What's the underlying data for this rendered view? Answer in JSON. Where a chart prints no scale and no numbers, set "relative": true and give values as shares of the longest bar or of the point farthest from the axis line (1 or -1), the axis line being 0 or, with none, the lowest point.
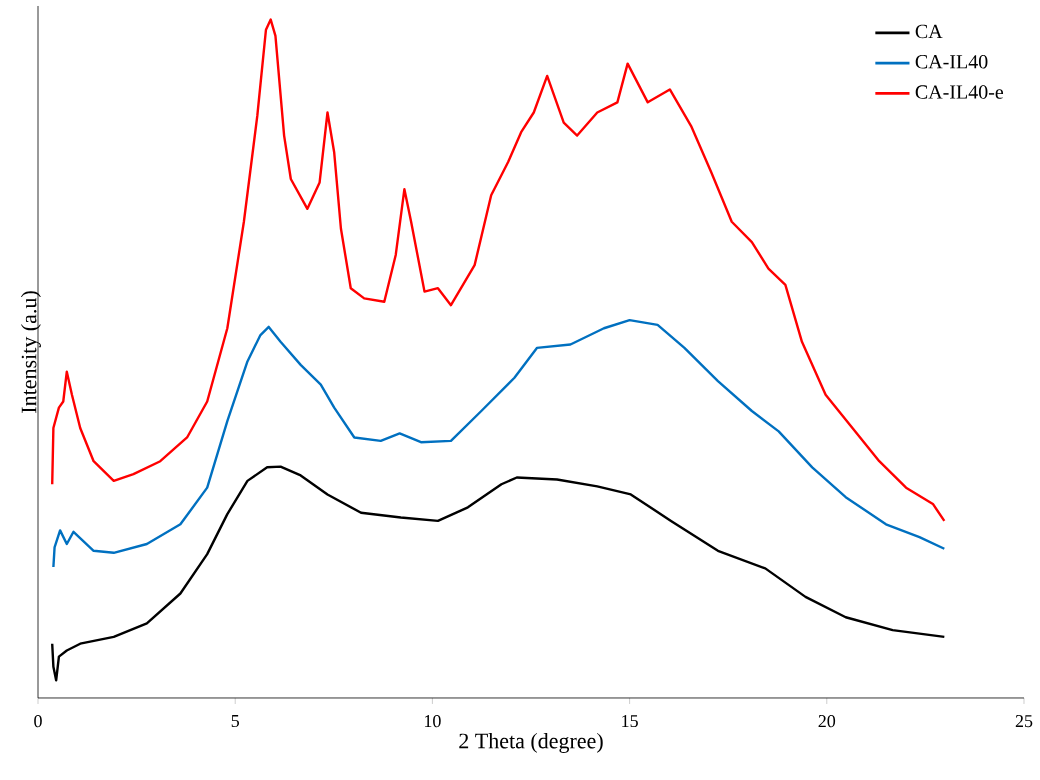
{
  "chart_data": {
    "type": "line",
    "xlabel": "2 Theta (degree)",
    "ylabel": "Intensity (a.u)",
    "relative": true,
    "xlim": [
      0,
      25
    ],
    "xticks": [
      0,
      5,
      10,
      15,
      20,
      25
    ],
    "tick_labels": "x",
    "legend": "top right",
    "marker": "none",
    "line_style": "solid",
    "series": [
      {
        "name": "CA",
        "color": "#000000",
        "x": [
          0.36,
          0.39,
          0.46,
          0.53,
          0.73,
          1.07,
          1.92,
          2.76,
          3.61,
          4.29,
          4.8,
          5.31,
          5.81,
          6.15,
          6.66,
          7.34,
          8.19,
          9.2,
          10.14,
          10.9,
          11.75,
          12.14,
          13.16,
          14.18,
          15.03,
          16.05,
          17.24,
          18.44,
          19.46,
          20.48,
          21.67,
          22.98
        ],
        "values": [
          0.08,
          0.046,
          0.026,
          0.061,
          0.07,
          0.08,
          0.09,
          0.11,
          0.154,
          0.212,
          0.271,
          0.32,
          0.34,
          0.341,
          0.328,
          0.3,
          0.273,
          0.266,
          0.261,
          0.281,
          0.315,
          0.325,
          0.322,
          0.312,
          0.3,
          0.261,
          0.217,
          0.191,
          0.149,
          0.119,
          0.1,
          0.09
        ]
      },
      {
        "name": "CA-IL40",
        "color": "#0070c0",
        "x": [
          0.39,
          0.42,
          0.56,
          0.73,
          0.9,
          1.41,
          1.92,
          2.76,
          3.61,
          4.29,
          4.8,
          5.31,
          5.64,
          5.85,
          6.15,
          6.66,
          7.17,
          7.51,
          8.02,
          8.69,
          9.17,
          9.71,
          10.47,
          11.24,
          12.08,
          12.65,
          13.5,
          14.35,
          15.0,
          15.71,
          16.39,
          17.24,
          18.1,
          18.78,
          19.63,
          20.48,
          21.5,
          22.35,
          22.98
        ],
        "values": [
          0.193,
          0.222,
          0.247,
          0.227,
          0.245,
          0.217,
          0.214,
          0.227,
          0.256,
          0.31,
          0.408,
          0.496,
          0.535,
          0.547,
          0.525,
          0.491,
          0.462,
          0.428,
          0.384,
          0.379,
          0.39,
          0.377,
          0.379,
          0.423,
          0.472,
          0.516,
          0.521,
          0.545,
          0.557,
          0.55,
          0.516,
          0.467,
          0.423,
          0.393,
          0.34,
          0.296,
          0.256,
          0.237,
          0.22
        ]
      },
      {
        "name": "CA-IL40-e",
        "color": "#ff0000",
        "x": [
          0.36,
          0.39,
          0.53,
          0.64,
          0.73,
          0.86,
          1.07,
          1.41,
          1.92,
          2.42,
          3.1,
          3.78,
          4.29,
          4.8,
          5.22,
          5.56,
          5.78,
          5.9,
          6.02,
          6.24,
          6.41,
          6.83,
          7.14,
          7.34,
          7.51,
          7.68,
          7.93,
          8.27,
          8.78,
          9.07,
          9.29,
          9.46,
          9.8,
          10.14,
          10.47,
          11.07,
          11.49,
          11.92,
          12.25,
          12.57,
          12.91,
          13.33,
          13.67,
          14.18,
          14.69,
          14.95,
          15.46,
          16.02,
          16.56,
          17.07,
          17.59,
          18.1,
          18.52,
          18.95,
          19.37,
          19.97,
          20.65,
          21.33,
          22.01,
          22.69,
          22.98
        ],
        "values": [
          0.315,
          0.398,
          0.428,
          0.437,
          0.481,
          0.447,
          0.398,
          0.349,
          0.32,
          0.33,
          0.349,
          0.384,
          0.437,
          0.545,
          0.702,
          0.858,
          0.985,
          1.0,
          0.976,
          0.829,
          0.765,
          0.721,
          0.76,
          0.863,
          0.804,
          0.692,
          0.604,
          0.589,
          0.584,
          0.653,
          0.75,
          0.702,
          0.599,
          0.604,
          0.579,
          0.638,
          0.741,
          0.79,
          0.834,
          0.863,
          0.917,
          0.848,
          0.829,
          0.863,
          0.878,
          0.935,
          0.878,
          0.897,
          0.843,
          0.775,
          0.702,
          0.672,
          0.633,
          0.609,
          0.525,
          0.447,
          0.398,
          0.349,
          0.31,
          0.286,
          0.261
        ]
      }
    ]
  }
}
